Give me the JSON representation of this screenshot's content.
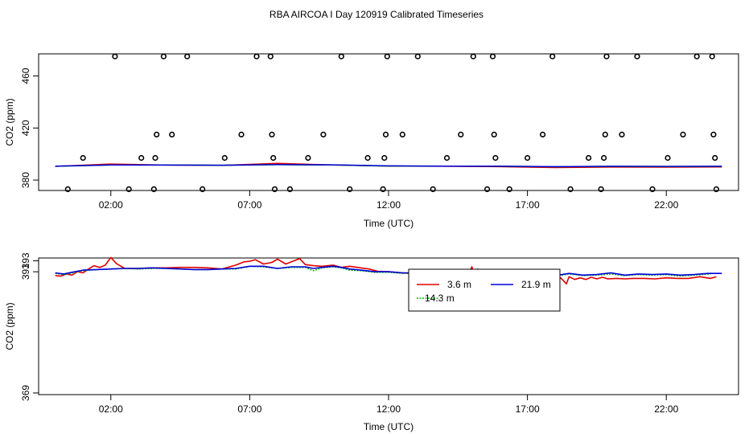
{
  "title": "RBA AIRCOA I  Day 120919  Calibrated Timeseries",
  "colors": {
    "s1": "#e00000",
    "s2": "#00bb00",
    "s3": "#0000dd",
    "axis": "#000000"
  },
  "chart_data": [
    {
      "type": "scatter",
      "panel": "top",
      "xlabel": "Time (UTC)",
      "ylabel": "CO2 (ppm)",
      "xlim": [
        -0.6,
        24.6
      ],
      "ylim": [
        372,
        477
      ],
      "x_ticks": [
        2,
        7,
        12,
        17,
        22
      ],
      "x_tick_labels": [
        "02:00",
        "07:00",
        "12:00",
        "17:00",
        "22:00"
      ],
      "y_ticks": [
        380,
        420,
        460
      ],
      "y_tick_labels": [
        "380",
        "420",
        "460"
      ],
      "points": {
        "x": [
          0.45,
          1.0,
          2.15,
          2.65,
          3.1,
          3.55,
          3.6,
          3.65,
          3.9,
          4.2,
          4.75,
          5.3,
          6.1,
          6.7,
          7.25,
          7.75,
          7.8,
          7.85,
          7.9,
          8.45,
          9.1,
          9.65,
          10.3,
          10.6,
          11.25,
          11.8,
          11.85,
          11.9,
          11.95,
          12.5,
          13.05,
          13.6,
          14.1,
          14.6,
          15.05,
          15.55,
          15.75,
          15.8,
          15.85,
          16.35,
          17.0,
          17.55,
          17.9,
          18.55,
          19.2,
          19.65,
          19.75,
          19.8,
          19.85,
          20.4,
          20.95,
          21.5,
          22.05,
          22.6,
          23.1,
          23.65,
          23.7,
          23.75,
          23.8
        ],
        "y": [
          373,
          397,
          475,
          373,
          397,
          373,
          397,
          415,
          475,
          415,
          475,
          373,
          397,
          415,
          475,
          475,
          415,
          397,
          373,
          373,
          397,
          415,
          475,
          373,
          397,
          373,
          397,
          415,
          475,
          415,
          475,
          373,
          397,
          415,
          475,
          373,
          475,
          415,
          397,
          373,
          397,
          415,
          475,
          373,
          397,
          373,
          397,
          415,
          475,
          415,
          475,
          373,
          397,
          415,
          475,
          475,
          415,
          397,
          373
        ]
      },
      "lines": [
        {
          "name": "3.6 m",
          "x": [
            0,
            2,
            4,
            6,
            8,
            10,
            12,
            14,
            16,
            18,
            20,
            22,
            24
          ],
          "y": [
            390.5,
            392.3,
            391.5,
            391.3,
            392.8,
            391.6,
            390.8,
            390.6,
            390.3,
            389.6,
            390.0,
            389.9,
            390.1
          ]
        },
        {
          "name": "14.3 m",
          "x": [
            0,
            2,
            4,
            6,
            8,
            10,
            12,
            14,
            16,
            18,
            20,
            22,
            24
          ],
          "y": [
            390.6,
            391.6,
            391.6,
            391.4,
            391.8,
            391.6,
            390.8,
            390.7,
            390.6,
            390.2,
            390.5,
            390.4,
            390.5
          ]
        },
        {
          "name": "21.9 m",
          "x": [
            0,
            2,
            4,
            6,
            8,
            10,
            12,
            14,
            16,
            18,
            20,
            22,
            24
          ],
          "y": [
            390.7,
            391.6,
            391.5,
            391.4,
            391.9,
            391.7,
            390.9,
            390.7,
            390.7,
            390.3,
            390.6,
            390.5,
            390.6
          ]
        }
      ]
    },
    {
      "type": "line",
      "panel": "bottom",
      "xlabel": "Time (UTC)",
      "ylabel": "CO2 (ppm)",
      "xlim": [
        -0.6,
        24.6
      ],
      "ylim": [
        368.7,
        393.5
      ],
      "x_ticks": [
        2,
        7,
        12,
        17,
        22
      ],
      "x_tick_labels": [
        "02:00",
        "07:00",
        "12:00",
        "17:00",
        "22:00"
      ],
      "y_ticks": [
        369,
        391,
        393
      ],
      "y_tick_labels": [
        "369",
        "391",
        "393"
      ],
      "legend": {
        "position": "top-center",
        "entries": [
          "3.6 m",
          "14.3 m",
          "21.9 m"
        ]
      },
      "series": [
        {
          "name": "3.6 m",
          "color": "#e00000",
          "x": [
            0.0,
            0.2,
            0.4,
            0.6,
            0.8,
            1.0,
            1.2,
            1.4,
            1.6,
            1.8,
            2.0,
            2.2,
            2.5,
            3.0,
            3.5,
            4.0,
            4.5,
            5.0,
            5.5,
            6.0,
            6.5,
            6.8,
            7.0,
            7.2,
            7.5,
            7.8,
            8.0,
            8.3,
            8.5,
            8.8,
            9.0,
            9.3,
            9.6,
            10.0,
            10.3,
            10.6,
            11.0,
            11.3,
            11.6,
            12.0,
            12.5,
            13.0,
            13.5,
            14.0,
            14.5,
            14.8,
            15.0,
            15.1,
            15.2,
            15.3,
            15.4,
            15.6,
            15.8,
            16.0,
            16.3,
            16.6,
            16.8,
            17.0,
            17.2,
            17.4,
            17.6,
            17.8,
            18.0,
            18.2,
            18.4,
            18.5,
            18.7,
            18.9,
            19.1,
            19.3,
            19.5,
            19.7,
            19.9,
            20.2,
            20.5,
            20.8,
            21.2,
            21.6,
            22.0,
            22.4,
            22.8,
            23.2,
            23.6,
            23.8
          ],
          "y": [
            390.3,
            390.2,
            390.6,
            390.4,
            391.0,
            390.8,
            391.5,
            392.1,
            391.8,
            392.2,
            393.6,
            392.5,
            391.6,
            391.6,
            391.7,
            391.7,
            391.8,
            391.8,
            391.7,
            391.5,
            392.2,
            392.8,
            392.9,
            393.2,
            392.4,
            392.7,
            393.3,
            392.4,
            392.8,
            393.4,
            392.3,
            392.1,
            392.0,
            392.2,
            391.8,
            392.0,
            391.7,
            391.5,
            391.1,
            391.0,
            390.8,
            390.6,
            390.4,
            390.3,
            390.2,
            390.0,
            391.9,
            390.0,
            391.5,
            390.1,
            390.9,
            390.2,
            390.0,
            390.3,
            389.7,
            390.2,
            389.6,
            389.9,
            389.3,
            389.6,
            389.3,
            389.8,
            389.5,
            389.9,
            388.8,
            390.1,
            389.6,
            389.9,
            389.6,
            390.0,
            389.7,
            390.0,
            389.7,
            389.8,
            389.7,
            389.8,
            389.8,
            389.7,
            389.9,
            389.8,
            389.8,
            390.1,
            389.8,
            390.1
          ]
        },
        {
          "name": "14.3 m",
          "color": "#00bb00",
          "x": [
            0.0,
            0.3,
            0.6,
            1.0,
            1.5,
            2.0,
            2.5,
            3.0,
            3.5,
            4.0,
            4.5,
            5.0,
            5.5,
            6.0,
            6.5,
            7.0,
            7.5,
            8.0,
            8.5,
            9.0,
            9.3,
            9.6,
            10.0,
            10.3,
            10.6,
            11.0,
            11.5,
            12.0,
            12.5,
            13.0,
            13.5,
            14.0,
            14.5,
            15.0,
            15.5,
            16.0,
            16.5,
            17.0,
            17.3,
            17.6,
            18.0,
            18.5,
            19.0,
            19.5,
            20.0,
            20.5,
            21.0,
            21.5,
            22.0,
            22.5,
            23.0,
            23.6
          ],
          "y": [
            390.7,
            390.5,
            390.8,
            391.2,
            391.4,
            391.5,
            391.6,
            391.5,
            391.6,
            391.6,
            391.5,
            391.4,
            391.4,
            391.5,
            391.5,
            392.0,
            391.9,
            391.6,
            391.8,
            391.8,
            391.2,
            391.7,
            391.9,
            391.7,
            391.3,
            391.2,
            390.9,
            390.9,
            390.7,
            390.8,
            390.7,
            390.6,
            390.5,
            390.5,
            390.4,
            390.6,
            390.4,
            390.1,
            390.3,
            390.6,
            390.2,
            390.6,
            390.3,
            390.4,
            390.6,
            390.3,
            390.5,
            390.4,
            390.5,
            390.2,
            390.4,
            390.6
          ]
        },
        {
          "name": "21.9 m",
          "color": "#0000dd",
          "x": [
            0.0,
            0.3,
            0.6,
            1.0,
            1.5,
            2.0,
            2.5,
            3.0,
            3.5,
            4.0,
            4.5,
            5.0,
            5.5,
            6.0,
            6.5,
            7.0,
            7.5,
            8.0,
            8.5,
            9.0,
            9.3,
            9.6,
            10.0,
            10.3,
            10.6,
            11.0,
            11.5,
            12.0,
            12.5,
            13.0,
            13.5,
            14.0,
            14.5,
            15.0,
            15.5,
            16.0,
            16.5,
            17.0,
            17.3,
            17.6,
            18.0,
            18.5,
            19.0,
            19.5,
            20.0,
            20.5,
            21.0,
            21.5,
            22.0,
            22.5,
            23.0,
            23.5,
            24.0
          ],
          "y": [
            390.8,
            390.6,
            390.9,
            391.3,
            391.4,
            391.5,
            391.6,
            391.6,
            391.7,
            391.6,
            391.5,
            391.4,
            391.4,
            391.5,
            391.6,
            392.0,
            392.0,
            391.6,
            391.9,
            391.9,
            391.6,
            391.8,
            392.0,
            391.8,
            391.5,
            391.3,
            391.0,
            391.0,
            390.8,
            390.8,
            390.8,
            390.7,
            390.6,
            390.6,
            390.5,
            390.9,
            390.6,
            390.4,
            390.5,
            390.9,
            390.3,
            390.7,
            390.4,
            390.5,
            390.8,
            390.4,
            390.6,
            390.5,
            390.6,
            390.4,
            390.5,
            390.7,
            390.7
          ]
        }
      ]
    }
  ]
}
